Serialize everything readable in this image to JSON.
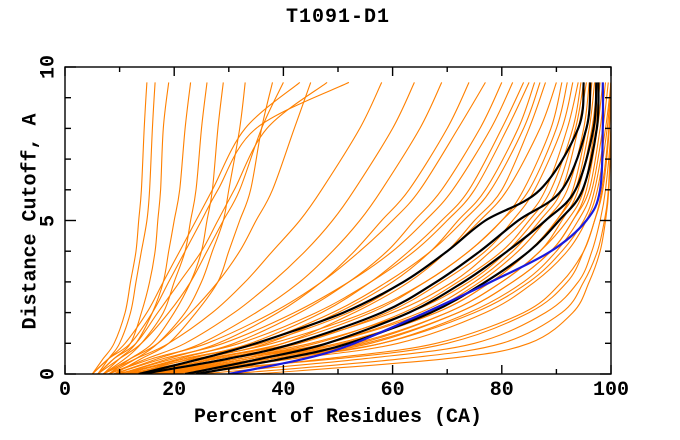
{
  "chart_data": {
    "type": "line",
    "title": "T1091-D1",
    "xlabel": "Percent of Residues (CA)",
    "ylabel": "Distance Cutoff, A",
    "xlim": [
      0,
      100
    ],
    "ylim": [
      0,
      10
    ],
    "x_major_ticks": [
      0,
      20,
      40,
      60,
      80,
      100
    ],
    "x_minor_step": 10,
    "y_major_ticks": [
      0,
      5,
      10
    ],
    "y_minor_step": 1,
    "grid": false,
    "legend": "none",
    "axis_color": "#000000",
    "sample_y": [
      0,
      0.5,
      1,
      2,
      3,
      4,
      5,
      6,
      8,
      9.5
    ],
    "groups": [
      {
        "name": "all-server-models",
        "color": "#ff8000",
        "stroke_width": 1.1,
        "curves": [
          [
            5,
            7,
            9,
            11,
            12,
            13,
            13.5,
            14,
            14.5,
            15
          ],
          [
            6,
            8,
            10,
            12,
            13,
            14,
            15,
            15.5,
            16,
            16.5
          ],
          [
            6,
            9,
            12,
            14,
            15.5,
            16.5,
            17,
            17.5,
            18,
            19
          ],
          [
            7,
            10,
            13,
            16,
            18,
            19,
            20,
            21,
            22,
            23
          ],
          [
            7,
            11,
            14,
            18,
            20,
            22,
            23,
            24,
            25,
            26
          ],
          [
            8,
            12,
            16,
            20,
            23,
            25,
            26,
            27,
            28,
            29
          ],
          [
            8,
            13,
            17,
            22,
            25,
            27,
            29,
            30,
            32,
            33
          ],
          [
            9,
            14,
            19,
            24,
            28,
            30,
            32,
            34,
            36,
            38
          ],
          [
            6,
            10,
            14,
            19,
            23,
            26,
            29,
            32,
            36,
            40
          ],
          [
            7,
            12,
            17,
            23,
            28,
            32,
            35,
            38,
            42,
            45
          ],
          [
            5,
            8,
            11,
            15,
            18,
            21,
            24,
            27,
            33,
            43
          ],
          [
            6,
            9,
            13,
            17,
            21,
            25,
            28,
            31,
            37,
            48
          ],
          [
            5,
            8,
            12,
            16,
            19,
            22,
            25,
            28,
            35,
            52
          ],
          [
            7,
            13,
            19,
            27,
            33,
            38,
            43,
            47,
            54,
            58
          ],
          [
            8,
            15,
            22,
            31,
            38,
            44,
            49,
            53,
            60,
            64
          ],
          [
            9,
            17,
            25,
            35,
            43,
            49,
            54,
            58,
            65,
            69
          ],
          [
            10,
            19,
            28,
            39,
            47,
            53,
            58,
            63,
            70,
            74
          ],
          [
            8,
            16,
            26,
            38,
            47,
            54,
            60,
            65,
            72,
            77
          ],
          [
            11,
            21,
            31,
            43,
            52,
            59,
            64,
            69,
            76,
            80
          ],
          [
            9,
            18,
            29,
            42,
            52,
            60,
            66,
            71,
            78,
            82
          ],
          [
            12,
            23,
            34,
            47,
            56,
            63,
            69,
            74,
            80,
            84
          ],
          [
            10,
            20,
            32,
            46,
            56,
            64,
            70,
            75,
            81,
            85
          ],
          [
            13,
            25,
            37,
            50,
            60,
            67,
            72,
            77,
            83,
            86
          ],
          [
            11,
            22,
            35,
            49,
            59,
            67,
            73,
            78,
            84,
            87
          ],
          [
            14,
            27,
            40,
            53,
            63,
            70,
            75,
            80,
            85,
            88
          ],
          [
            10,
            22,
            36,
            52,
            62,
            70,
            76,
            81,
            87,
            90
          ],
          [
            12,
            26,
            40,
            56,
            66,
            74,
            80,
            84,
            89,
            91
          ],
          [
            9,
            24,
            38,
            55,
            66,
            74,
            80,
            85,
            90,
            92
          ],
          [
            13,
            28,
            43,
            59,
            69,
            77,
            82,
            86,
            91,
            93
          ],
          [
            11,
            26,
            42,
            60,
            71,
            78,
            84,
            88,
            92,
            94
          ],
          [
            14,
            30,
            46,
            62,
            72,
            80,
            85,
            89,
            93,
            94.5
          ],
          [
            12,
            28,
            45,
            63,
            74,
            81,
            86,
            90,
            93.5,
            95
          ],
          [
            15,
            32,
            48,
            65,
            75,
            82,
            87,
            91,
            94,
            95.5
          ],
          [
            13,
            30,
            48,
            66,
            76,
            83,
            88,
            92,
            95,
            96
          ],
          [
            16,
            34,
            51,
            68,
            78,
            85,
            90,
            93,
            95.5,
            96.5
          ],
          [
            14,
            32,
            50,
            68,
            78,
            85,
            90,
            93.5,
            96,
            97
          ],
          [
            17,
            36,
            54,
            70,
            80,
            87,
            91,
            94,
            96.5,
            97.5
          ],
          [
            15,
            34,
            53,
            70,
            80,
            87,
            92,
            95,
            97,
            98
          ],
          [
            18,
            38,
            56,
            72,
            82,
            89,
            93,
            95.5,
            97.5,
            98.5
          ],
          [
            16,
            36,
            55,
            72,
            82,
            89,
            93,
            96,
            98,
            99
          ],
          [
            19,
            40,
            58,
            74,
            84,
            90,
            94,
            96.5,
            98.5,
            99.5
          ],
          [
            17,
            38,
            58,
            75,
            85,
            91,
            95,
            97,
            99,
            100
          ],
          [
            20,
            42,
            61,
            77,
            86,
            92,
            95.5,
            97.5,
            99.3,
            100
          ],
          [
            25,
            55,
            75,
            88,
            94,
            96.5,
            98,
            99,
            100,
            100
          ],
          [
            30,
            62,
            80,
            91,
            95,
            97.5,
            98.8,
            99.5,
            100,
            100
          ],
          [
            15,
            50,
            70,
            85,
            92,
            95,
            97,
            98.3,
            99.6,
            100
          ],
          [
            35,
            70,
            85,
            93,
            96,
            98,
            99,
            99.6,
            100,
            100
          ],
          [
            22,
            48,
            68,
            84,
            91,
            95,
            97,
            98.5,
            99.7,
            100
          ]
        ]
      },
      {
        "name": "highlighted-group-models",
        "color": "#000000",
        "stroke_width": 2.2,
        "curves": [
          [
            13.5,
            25,
            35,
            51,
            62,
            70,
            77,
            87,
            94,
            95
          ],
          [
            14,
            30,
            42,
            58,
            68,
            76,
            83,
            91,
            95.5,
            96.2
          ],
          [
            22,
            36,
            48,
            63,
            73,
            81,
            88,
            93.5,
            96.8,
            97.3
          ],
          [
            24,
            40,
            52,
            67,
            77,
            85,
            90.5,
            94.8,
            97.4,
            97.7
          ]
        ]
      },
      {
        "name": "reference-model",
        "color": "#1a1add",
        "stroke_width": 2.2,
        "curves": [
          [
            30,
            44,
            53,
            66,
            78,
            89,
            95.5,
            98,
            98.5,
            98.5
          ]
        ]
      }
    ]
  }
}
